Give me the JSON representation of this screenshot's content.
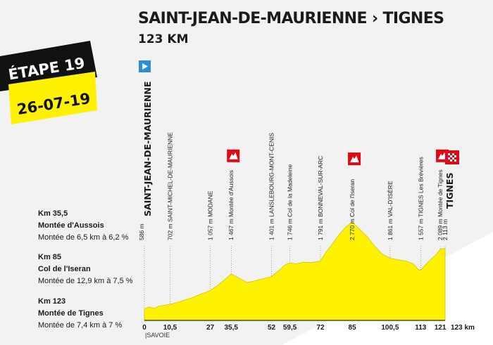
{
  "header": {
    "title": "SAINT-JEAN-DE-MAURIENNE › TIGNES",
    "distance": "123 KM"
  },
  "stage": {
    "label": "ÉTAPE 19",
    "date": "26-07-19"
  },
  "climbs": [
    {
      "km": "Km 35,5",
      "name": "Montée d'Aussois",
      "detail": "Montée de 6,5 km à 6,2 %"
    },
    {
      "km": "Km 85",
      "name": "Col de l'Iseran",
      "detail": "Montée de 12,9 km à 7,5 %"
    },
    {
      "km": "Km 123",
      "name": "Montée de Tignes",
      "detail": "Montée de 7,4 km à 7 %"
    }
  ],
  "colors": {
    "profile_fill": "#fff200",
    "profile_line": "#d1c400",
    "banner_black": "#111111",
    "banner_yellow": "#fff200",
    "climb_marker": "#e30613",
    "start_flag": "#2a8fd8"
  },
  "chart_data": {
    "type": "area",
    "title": "",
    "xlabel": "",
    "ylabel": "",
    "x_unit": "123 km",
    "x_ticks": [
      "0",
      "10,5",
      "27",
      "35,5",
      "52",
      "59,5",
      "72",
      "85",
      "100,5",
      "113",
      "121"
    ],
    "xlim": [
      0,
      123
    ],
    "ylim": [
      300,
      3000
    ],
    "region_label": "|SAVOIE",
    "start_label": "SAINT-JEAN-DE-MAURIENNE",
    "finish_label": "TIGNES",
    "waypoints": [
      {
        "km": 0,
        "text": "586 m",
        "alt": 586
      },
      {
        "km": 10.5,
        "text": "702 m SAINT-MICHEL-DE-MAURIENNE",
        "alt": 702
      },
      {
        "km": 27,
        "text": "1 057 m MODANE",
        "alt": 1057
      },
      {
        "km": 35.5,
        "text": "1 467 m Montée d'Aussois",
        "alt": 1467,
        "climb": true
      },
      {
        "km": 52,
        "text": "1 401 m LANSLEBOURG-MONT-CENIS",
        "alt": 1401
      },
      {
        "km": 59.5,
        "text": "1 746 m Col de la Madeleine",
        "alt": 1746
      },
      {
        "km": 72,
        "text": "1 791 m BONNEVAL-SUR-ARC",
        "alt": 1791
      },
      {
        "km": 85,
        "text": "2 770 m Col de l'Iseran",
        "alt": 2770,
        "climb": true
      },
      {
        "km": 100.5,
        "text": "1 861 m VAL-D'ISÈRE",
        "alt": 1861
      },
      {
        "km": 113,
        "text": "1 557 m TIGNES Les Brévières",
        "alt": 1557
      },
      {
        "km": 121,
        "text": "2 089 m Montée de Tignes",
        "alt": 2089,
        "climb": true
      },
      {
        "km": 123,
        "text": "2 113 m",
        "alt": 2113
      }
    ],
    "profile": [
      [
        0,
        586
      ],
      [
        2,
        640
      ],
      [
        4,
        600
      ],
      [
        6,
        660
      ],
      [
        8,
        680
      ],
      [
        10.5,
        702
      ],
      [
        14,
        760
      ],
      [
        17,
        820
      ],
      [
        20,
        880
      ],
      [
        23,
        960
      ],
      [
        25,
        1000
      ],
      [
        27,
        1057
      ],
      [
        30,
        1180
      ],
      [
        33,
        1330
      ],
      [
        35.5,
        1467
      ],
      [
        38,
        1390
      ],
      [
        40,
        1320
      ],
      [
        42,
        1250
      ],
      [
        45,
        1290
      ],
      [
        48,
        1340
      ],
      [
        52,
        1401
      ],
      [
        55,
        1550
      ],
      [
        57.5,
        1690
      ],
      [
        59.5,
        1746
      ],
      [
        62,
        1720
      ],
      [
        65,
        1760
      ],
      [
        68,
        1750
      ],
      [
        72,
        1791
      ],
      [
        74,
        1990
      ],
      [
        77,
        2230
      ],
      [
        80,
        2480
      ],
      [
        82.5,
        2650
      ],
      [
        85,
        2770
      ],
      [
        88,
        2590
      ],
      [
        91,
        2410
      ],
      [
        94,
        2180
      ],
      [
        97,
        1980
      ],
      [
        100.5,
        1861
      ],
      [
        104,
        1820
      ],
      [
        107,
        1790
      ],
      [
        110,
        1720
      ],
      [
        112,
        1580
      ],
      [
        113,
        1557
      ],
      [
        115,
        1700
      ],
      [
        117.5,
        1850
      ],
      [
        119.5,
        1960
      ],
      [
        121,
        2089
      ],
      [
        123,
        2113
      ]
    ]
  }
}
